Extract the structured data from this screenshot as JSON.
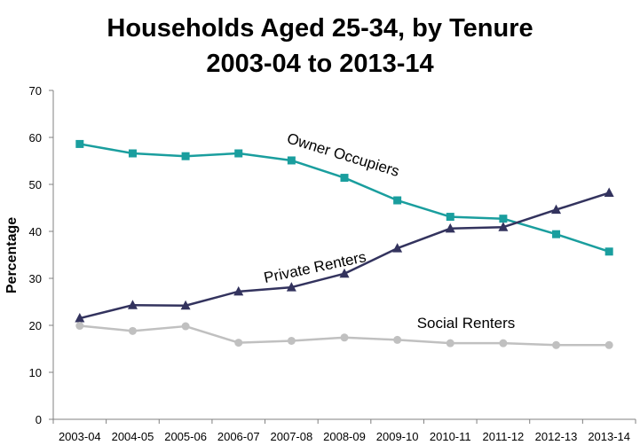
{
  "chart_data": {
    "type": "line",
    "title": "Households Aged 25-34, by Tenure",
    "subtitle": "2003-04 to 2013-14",
    "ylabel": "Percentage",
    "xlabel": "",
    "ylim": [
      0,
      70
    ],
    "yticks": [
      0,
      10,
      20,
      30,
      40,
      50,
      60,
      70
    ],
    "grid": false,
    "legend": "none",
    "categories": [
      "2003-04",
      "2004-05",
      "2005-06",
      "2006-07",
      "2007-08",
      "2008-09",
      "2009-10",
      "2010-11",
      "2011-12",
      "2012-13",
      "2013-14"
    ],
    "series": [
      {
        "name": "Owner Occupiers",
        "marker": "square",
        "color": "#1a9e9e",
        "values": [
          58.6,
          56.6,
          56.0,
          56.6,
          55.1,
          51.4,
          46.6,
          43.1,
          42.7,
          39.4,
          35.7
        ]
      },
      {
        "name": "Private Renters",
        "marker": "triangle",
        "color": "#33335e",
        "values": [
          21.5,
          24.3,
          24.2,
          27.2,
          28.1,
          31.0,
          36.4,
          40.6,
          40.9,
          44.6,
          48.2
        ]
      },
      {
        "name": "Social Renters",
        "marker": "circle",
        "color": "#c0c0c0",
        "values": [
          19.9,
          18.8,
          19.8,
          16.3,
          16.7,
          17.4,
          16.9,
          16.2,
          16.2,
          15.8,
          15.8
        ]
      }
    ],
    "annotations": [
      {
        "series": 0,
        "text": "Owner Occupiers"
      },
      {
        "series": 1,
        "text": "Private Renters"
      },
      {
        "series": 2,
        "text": "Social Renters"
      }
    ]
  }
}
